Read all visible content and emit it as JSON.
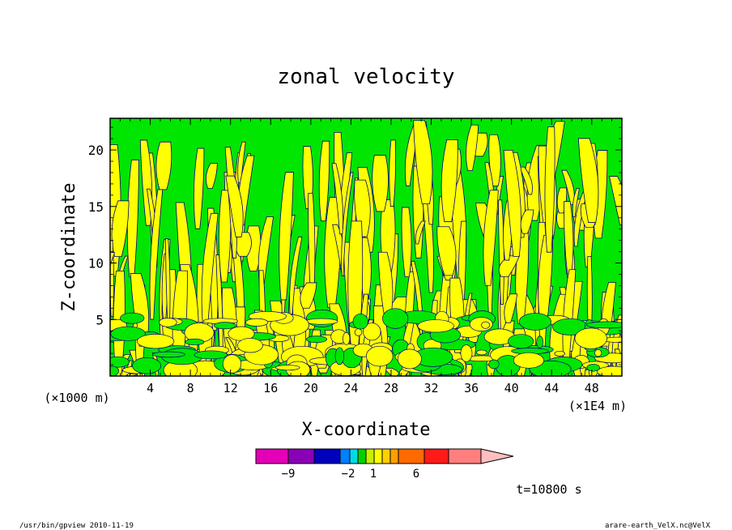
{
  "chart_data": {
    "type": "heatmap",
    "title": "zonal velocity",
    "xlabel": "X-coordinate",
    "ylabel": "Z-coordinate",
    "x_unit_left": "(×1000 m)",
    "x_unit_right": "(×1E4 m)",
    "xlim": [
      0,
      51
    ],
    "ylim": [
      0,
      22.8
    ],
    "x_ticks": [
      4,
      8,
      12,
      16,
      20,
      24,
      28,
      32,
      36,
      40,
      44,
      48
    ],
    "x_tick_labels": [
      "4",
      "8",
      "12",
      "16",
      "20",
      "24",
      "28",
      "32",
      "36",
      "40",
      "44",
      "48"
    ],
    "y_ticks": [
      5,
      10,
      15,
      20
    ],
    "y_tick_labels": [
      "5",
      "10",
      "15",
      "20"
    ],
    "field_colors": {
      "positive": "#00e600",
      "near_zero": "#ffff00",
      "contour_line": "#000080"
    },
    "colorbar": {
      "colors": [
        "#e400b8",
        "#8a00b6",
        "#0000bd",
        "#0080ff",
        "#00d9e6",
        "#00d200",
        "#c8f000",
        "#ffff00",
        "#ffd000",
        "#ffa000",
        "#ff6a00",
        "#ff1a1a",
        "#ff7f7f",
        "#ffbfbf"
      ],
      "labels": [
        "−9",
        "−2",
        "1",
        "6"
      ],
      "label_positions": [
        -9,
        -2,
        1,
        6
      ],
      "extends": "right"
    },
    "time_label": "t=10800 s"
  },
  "footer": {
    "left": "/usr/bin/gpview  2010-11-19",
    "right": "arare-earth_VelX.nc@VelX"
  }
}
